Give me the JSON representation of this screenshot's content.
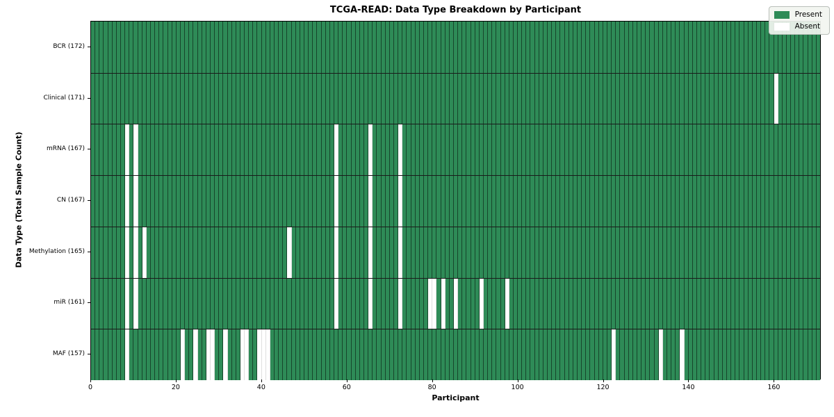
{
  "chart_data": {
    "type": "heatmap",
    "title": "TCGA-READ: Data Type Breakdown by Participant",
    "xlabel": "Participant",
    "ylabel": "Data Type (Total Sample Count)",
    "n_participants": 171,
    "x_ticks": [
      0,
      20,
      40,
      60,
      80,
      100,
      120,
      140,
      160
    ],
    "grid": "cell-edges-on",
    "legend_position": "upper-right",
    "legend": [
      {
        "label": "Present",
        "color": "#2e8b57"
      },
      {
        "label": "Absent",
        "color": "#ffffff"
      }
    ],
    "rows": [
      {
        "label": "BCR (172)",
        "data_type": "BCR",
        "total_samples": 172,
        "absent_participants": []
      },
      {
        "label": "Clinical (171)",
        "data_type": "Clinical",
        "total_samples": 171,
        "absent_participants": [
          160
        ]
      },
      {
        "label": "mRNA (167)",
        "data_type": "mRNA",
        "total_samples": 167,
        "absent_participants": [
          8,
          10,
          57,
          65,
          72
        ]
      },
      {
        "label": "CN (167)",
        "data_type": "CN",
        "total_samples": 167,
        "absent_participants": [
          8,
          10,
          57,
          65,
          72
        ]
      },
      {
        "label": "Methylation (165)",
        "data_type": "Methylation",
        "total_samples": 165,
        "absent_participants": [
          8,
          10,
          12,
          46,
          57,
          65,
          72
        ]
      },
      {
        "label": "miR (161)",
        "data_type": "miR",
        "total_samples": 161,
        "absent_participants": [
          8,
          10,
          57,
          65,
          72,
          79,
          80,
          82,
          85,
          91,
          97
        ]
      },
      {
        "label": "MAF (157)",
        "data_type": "MAF",
        "total_samples": 157,
        "absent_participants": [
          8,
          21,
          24,
          27,
          28,
          31,
          35,
          36,
          39,
          40,
          41,
          122,
          133,
          138
        ]
      }
    ],
    "colors": {
      "present": "#2e8b57",
      "absent": "#ffffff",
      "cell_edge": "rgba(0,0,0,0.50)",
      "row_divider": "#1a1a1a",
      "spine": "#000000"
    }
  }
}
